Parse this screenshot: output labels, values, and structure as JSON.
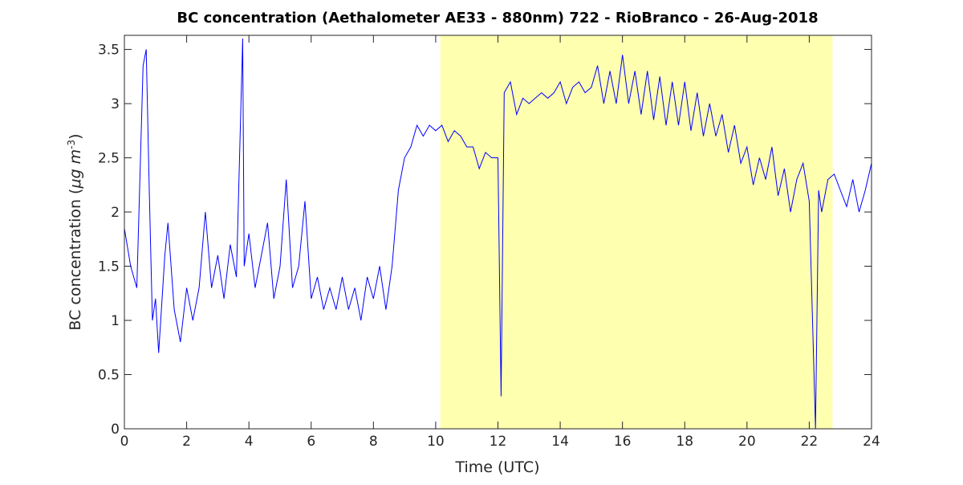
{
  "chart_data": {
    "type": "line",
    "title": "BC concentration (Aethalometer AE33 - 880nm) 722 - RioBranco - 26-Aug-2018",
    "xlabel": "Time (UTC)",
    "ylabel": [
      "BC concentration (",
      "μg m",
      "-3",
      ")"
    ],
    "xlim": [
      0,
      24
    ],
    "xticks": [
      0,
      2,
      4,
      6,
      8,
      10,
      12,
      14,
      16,
      18,
      20,
      22,
      24
    ],
    "ylim": [
      0,
      3.63
    ],
    "yticks": [
      0,
      0.5,
      1,
      1.5,
      2,
      2.5,
      3,
      3.5
    ],
    "shaded_region": {
      "x": [
        10.15,
        22.75
      ],
      "color": "#ffffb0"
    },
    "x": [
      0.0,
      0.2,
      0.4,
      0.6,
      0.7,
      0.8,
      0.9,
      1.0,
      1.1,
      1.3,
      1.4,
      1.6,
      1.8,
      2.0,
      2.2,
      2.4,
      2.6,
      2.8,
      3.0,
      3.2,
      3.4,
      3.6,
      3.8,
      3.85,
      4.0,
      4.2,
      4.4,
      4.6,
      4.8,
      5.0,
      5.2,
      5.4,
      5.6,
      5.8,
      6.0,
      6.2,
      6.4,
      6.6,
      6.8,
      7.0,
      7.2,
      7.4,
      7.6,
      7.8,
      8.0,
      8.2,
      8.4,
      8.6,
      8.8,
      9.0,
      9.2,
      9.4,
      9.6,
      9.8,
      10.0,
      10.2,
      10.4,
      10.6,
      10.8,
      11.0,
      11.2,
      11.4,
      11.6,
      11.8,
      12.0,
      12.1,
      12.2,
      12.4,
      12.6,
      12.8,
      13.0,
      13.2,
      13.4,
      13.6,
      13.8,
      14.0,
      14.2,
      14.4,
      14.6,
      14.8,
      15.0,
      15.2,
      15.4,
      15.6,
      15.8,
      16.0,
      16.2,
      16.4,
      16.6,
      16.8,
      17.0,
      17.2,
      17.4,
      17.6,
      17.8,
      18.0,
      18.2,
      18.4,
      18.6,
      18.8,
      19.0,
      19.2,
      19.4,
      19.6,
      19.8,
      20.0,
      20.2,
      20.4,
      20.6,
      20.8,
      21.0,
      21.2,
      21.4,
      21.6,
      21.8,
      22.0,
      22.2,
      22.3,
      22.4,
      22.6,
      22.8,
      23.0,
      23.2,
      23.4,
      23.6,
      23.8,
      24.0
    ],
    "series": [
      {
        "color": "#0000ff",
        "values": [
          1.85,
          1.5,
          1.3,
          3.35,
          3.5,
          2.2,
          1.0,
          1.2,
          0.7,
          1.6,
          1.9,
          1.1,
          0.8,
          1.3,
          1.0,
          1.3,
          2.0,
          1.3,
          1.6,
          1.2,
          1.7,
          1.4,
          3.6,
          1.5,
          1.8,
          1.3,
          1.6,
          1.9,
          1.2,
          1.5,
          2.3,
          1.3,
          1.5,
          2.1,
          1.2,
          1.4,
          1.1,
          1.3,
          1.1,
          1.4,
          1.1,
          1.3,
          1.0,
          1.4,
          1.2,
          1.5,
          1.1,
          1.5,
          2.2,
          2.5,
          2.6,
          2.8,
          2.7,
          2.8,
          2.75,
          2.8,
          2.65,
          2.75,
          2.7,
          2.6,
          2.6,
          2.4,
          2.55,
          2.5,
          2.5,
          0.3,
          3.1,
          3.2,
          2.9,
          3.05,
          3.0,
          3.05,
          3.1,
          3.05,
          3.1,
          3.2,
          3.0,
          3.15,
          3.2,
          3.1,
          3.15,
          3.35,
          3.0,
          3.3,
          3.0,
          3.45,
          3.0,
          3.3,
          2.9,
          3.3,
          2.85,
          3.25,
          2.8,
          3.2,
          2.8,
          3.2,
          2.75,
          3.1,
          2.7,
          3.0,
          2.7,
          2.9,
          2.55,
          2.8,
          2.45,
          2.6,
          2.25,
          2.5,
          2.3,
          2.6,
          2.15,
          2.4,
          2.0,
          2.3,
          2.45,
          2.1,
          0.0,
          2.2,
          2.0,
          2.3,
          2.35,
          2.2,
          2.05,
          2.3,
          2.0,
          2.2,
          2.45
        ]
      }
    ]
  }
}
